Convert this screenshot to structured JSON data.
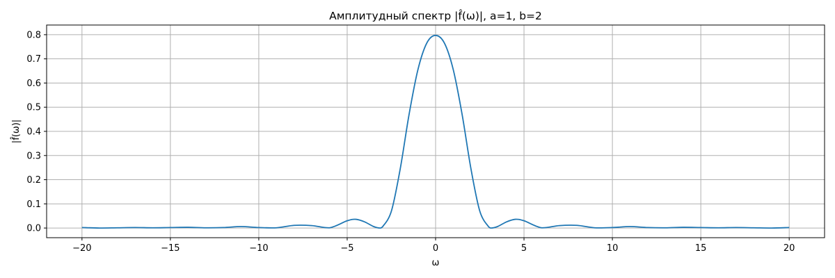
{
  "chart_data": {
    "type": "line",
    "title": "Амплитудный спектр |f̂(ω)|, a=1, b=2",
    "xlabel": "ω",
    "ylabel": "|f̂(ω)|",
    "xlim": [
      -22,
      22
    ],
    "ylim": [
      -0.04,
      0.84
    ],
    "grid": true,
    "x_ticks": [
      -20,
      -15,
      -10,
      -5,
      0,
      5,
      10,
      15,
      20
    ],
    "x_tick_labels": [
      "−20",
      "−15",
      "−10",
      "−5",
      "0",
      "5",
      "10",
      "15",
      "20"
    ],
    "y_ticks": [
      0.0,
      0.1,
      0.2,
      0.3,
      0.4,
      0.5,
      0.6,
      0.7,
      0.8
    ],
    "y_tick_labels": [
      "0.0",
      "0.1",
      "0.2",
      "0.3",
      "0.4",
      "0.5",
      "0.6",
      "0.7",
      "0.8"
    ],
    "series": [
      {
        "color": "#1f77b4",
        "x": [
          -20,
          -19,
          -18,
          -17,
          -16,
          -15,
          -14,
          -13,
          -12,
          -11,
          -10,
          -9,
          -8,
          -7,
          -6,
          -5,
          -4.5,
          -4,
          -3.5,
          -3.14,
          -3,
          -2.5,
          -2,
          -1.5,
          -1,
          -0.5,
          0,
          0.5,
          1,
          1.5,
          2,
          2.5,
          3,
          3.14,
          3.5,
          4,
          4.5,
          5,
          6,
          7,
          8,
          9,
          10,
          11,
          12,
          13,
          14,
          15,
          16,
          17,
          18,
          19,
          20
        ],
        "values": [
          0.002,
          0.0,
          0.001,
          0.002,
          0.001,
          0.002,
          0.003,
          0.001,
          0.002,
          0.006,
          0.002,
          0.001,
          0.011,
          0.01,
          0.001,
          0.03,
          0.036,
          0.025,
          0.006,
          0.0,
          0.005,
          0.07,
          0.245,
          0.47,
          0.655,
          0.765,
          0.797,
          0.765,
          0.655,
          0.47,
          0.245,
          0.07,
          0.005,
          0.0,
          0.006,
          0.025,
          0.036,
          0.03,
          0.001,
          0.01,
          0.011,
          0.001,
          0.002,
          0.006,
          0.002,
          0.001,
          0.003,
          0.002,
          0.001,
          0.002,
          0.001,
          0.0,
          0.002
        ]
      }
    ]
  }
}
